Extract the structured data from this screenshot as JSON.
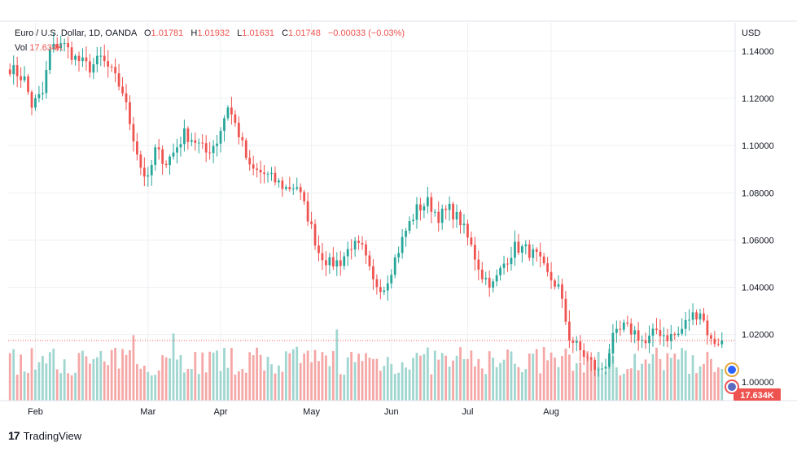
{
  "header": {
    "symbol": "Euro / U.S. Dollar, 1D, OANDA",
    "open_label": "O",
    "open": "1.01781",
    "high_label": "H",
    "high": "1.01932",
    "low_label": "L",
    "low": "1.01631",
    "close_label": "C",
    "close": "1.01748",
    "change": "−0.00033 (−0.03%)",
    "vol_label": "Vol",
    "vol": "17.634K"
  },
  "axis": {
    "currency": "USD",
    "price_ticks": [
      "1.14000",
      "1.12000",
      "1.10000",
      "1.08000",
      "1.06000",
      "1.04000",
      "1.02000",
      "1.00000"
    ],
    "month_ticks": [
      "Feb",
      "Mar",
      "Apr",
      "May",
      "Jun",
      "Jul",
      "Aug"
    ]
  },
  "vol_badge": "17.634K",
  "brand": "TradingView",
  "colors": {
    "up": "#26a69a",
    "down": "#ef5350",
    "vol_up": "#9fd6cf",
    "vol_down": "#f4a7a6",
    "grid": "#eef0f3",
    "text": "#131722"
  },
  "chart_data": {
    "type": "candlestick",
    "title": "Euro / U.S. Dollar, 1D, OANDA",
    "ylabel": "USD",
    "ylim": [
      0.992,
      1.152
    ],
    "last_close": 1.01748,
    "path_checkpoints": [
      [
        0,
        1.133
      ],
      [
        4,
        1.128
      ],
      [
        6,
        1.117
      ],
      [
        9,
        1.122
      ],
      [
        11,
        1.14
      ],
      [
        14,
        1.144
      ],
      [
        18,
        1.137
      ],
      [
        22,
        1.133
      ],
      [
        25,
        1.137
      ],
      [
        28,
        1.131
      ],
      [
        31,
        1.123
      ],
      [
        33,
        1.11
      ],
      [
        36,
        1.091
      ],
      [
        38,
        1.085
      ],
      [
        40,
        1.098
      ],
      [
        43,
        1.093
      ],
      [
        45,
        1.097
      ],
      [
        48,
        1.105
      ],
      [
        51,
        1.102
      ],
      [
        54,
        1.097
      ],
      [
        57,
        1.102
      ],
      [
        60,
        1.117
      ],
      [
        63,
        1.105
      ],
      [
        66,
        1.09
      ],
      [
        70,
        1.088
      ],
      [
        73,
        1.085
      ],
      [
        76,
        1.082
      ],
      [
        79,
        1.083
      ],
      [
        82,
        1.07
      ],
      [
        85,
        1.055
      ],
      [
        88,
        1.05
      ],
      [
        91,
        1.051
      ],
      [
        94,
        1.058
      ],
      [
        97,
        1.056
      ],
      [
        100,
        1.042
      ],
      [
        103,
        1.04
      ],
      [
        106,
        1.052
      ],
      [
        109,
        1.064
      ],
      [
        112,
        1.073
      ],
      [
        115,
        1.076
      ],
      [
        118,
        1.07
      ],
      [
        121,
        1.073
      ],
      [
        124,
        1.068
      ],
      [
        127,
        1.057
      ],
      [
        130,
        1.045
      ],
      [
        133,
        1.041
      ],
      [
        136,
        1.05
      ],
      [
        139,
        1.057
      ],
      [
        142,
        1.056
      ],
      [
        145,
        1.053
      ],
      [
        148,
        1.045
      ],
      [
        151,
        1.04
      ],
      [
        154,
        1.019
      ],
      [
        157,
        1.013
      ],
      [
        160,
        1.008
      ],
      [
        162,
        1.004
      ],
      [
        164,
        1.008
      ],
      [
        166,
        1.018
      ],
      [
        169,
        1.023
      ],
      [
        172,
        1.021
      ],
      [
        175,
        1.016
      ],
      [
        178,
        1.022
      ],
      [
        181,
        1.019
      ],
      [
        184,
        1.02
      ],
      [
        187,
        1.027
      ],
      [
        190,
        1.03
      ],
      [
        193,
        1.017
      ],
      [
        196,
        1.01748
      ]
    ],
    "volume_range": [
      0,
      60000
    ],
    "last_volume": 17634
  }
}
